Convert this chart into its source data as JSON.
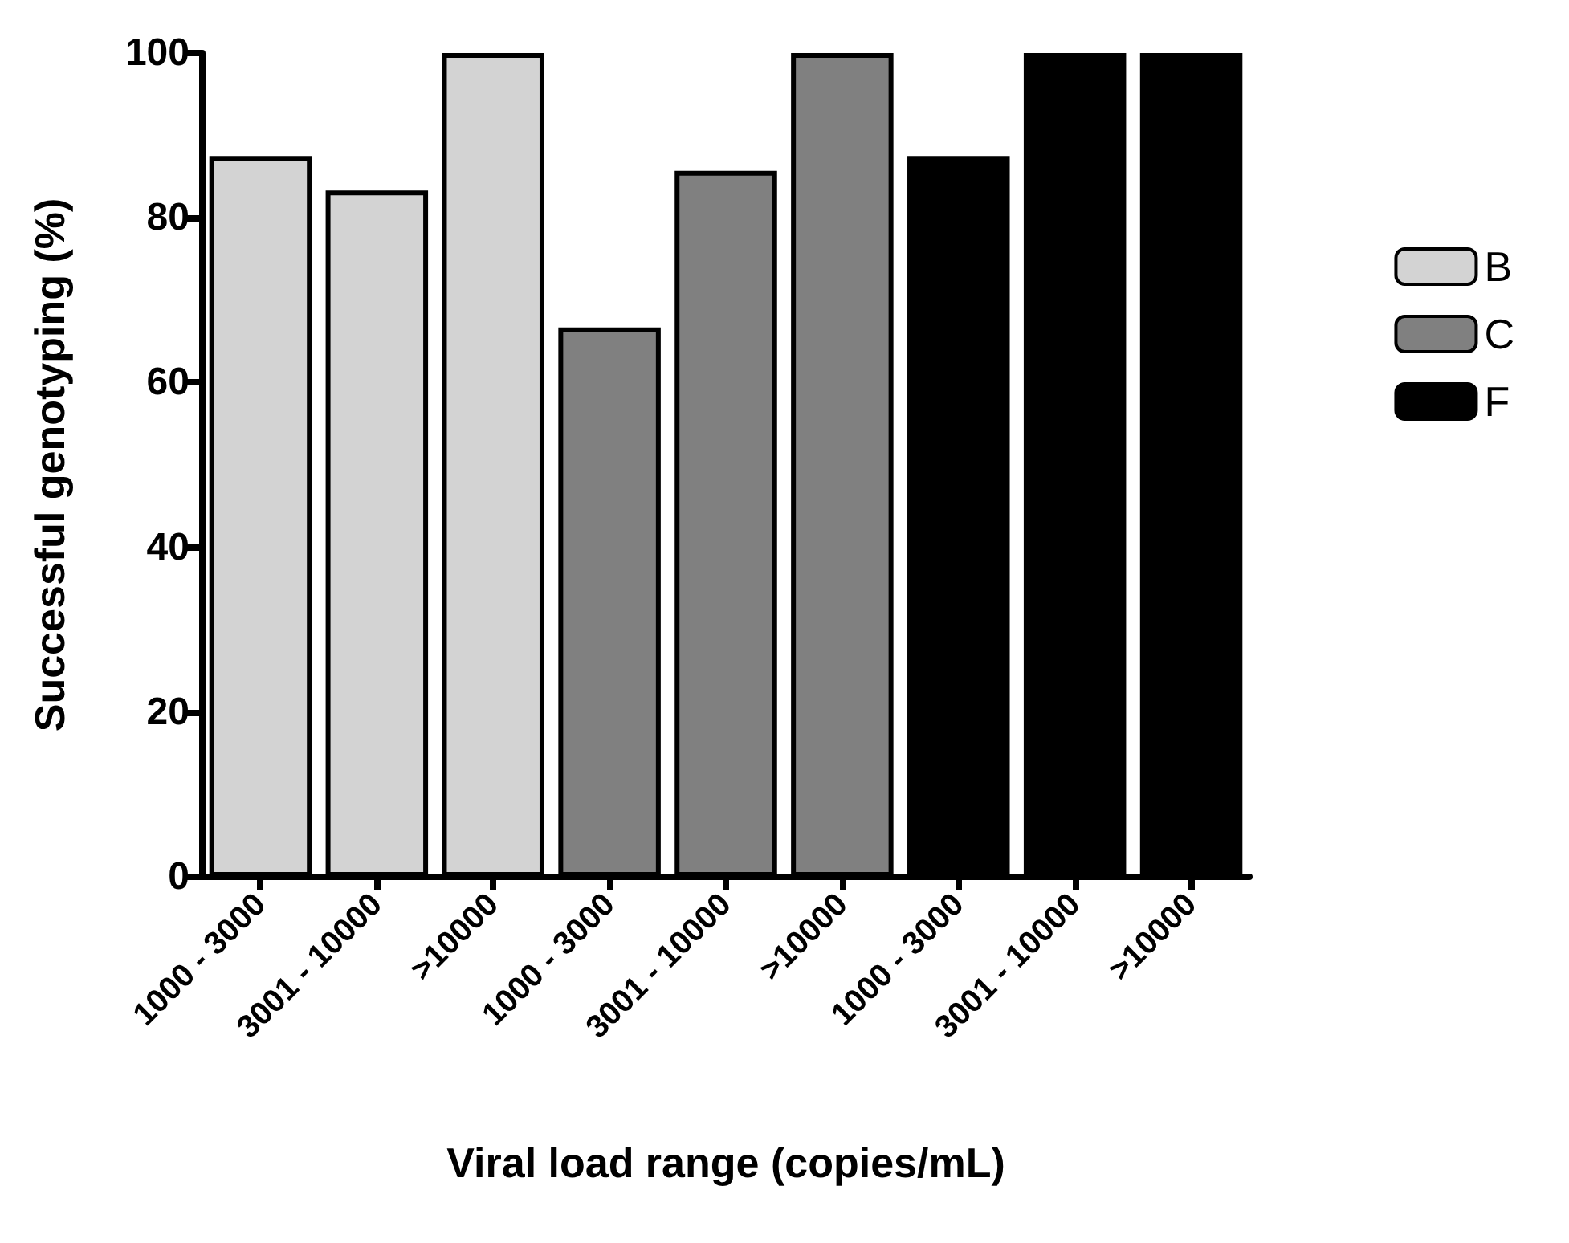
{
  "chart_data": {
    "type": "bar",
    "xlabel": "Viral load range (copies/mL)",
    "ylabel": "Successful genotyping (%)",
    "categories": [
      "1000 - 3000",
      "3001 - 10000",
      ">10000",
      "1000 - 3000",
      "3001 - 10000",
      ">10000",
      "1000 - 3000",
      "3001 - 10000",
      ">10000"
    ],
    "series": [
      {
        "name": "B",
        "color": "#d3d3d3",
        "values": [
          87.5,
          83.3,
          100,
          null,
          null,
          null,
          null,
          null,
          null
        ]
      },
      {
        "name": "C",
        "color": "#808080",
        "values": [
          null,
          null,
          null,
          66.7,
          85.7,
          100,
          null,
          null,
          null
        ]
      },
      {
        "name": "F",
        "color": "#000000",
        "values": [
          null,
          null,
          null,
          null,
          null,
          null,
          87.5,
          100,
          100
        ]
      }
    ],
    "ylim": [
      0,
      100
    ],
    "yticks": [
      0,
      20,
      40,
      60,
      80,
      100
    ],
    "grid": false,
    "legend": "right"
  }
}
